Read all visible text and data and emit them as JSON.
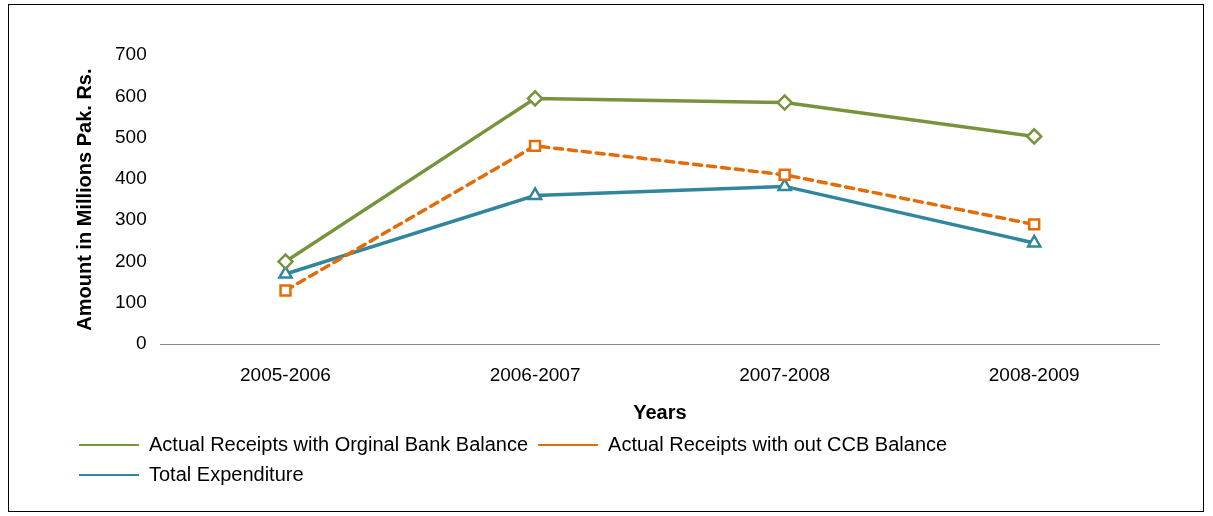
{
  "chart_data": {
    "type": "line",
    "xlabel": "Years",
    "ylabel": "Amount in Millions Pak. Rs.",
    "categories": [
      "2005-2006",
      "2006-2007",
      "2007-2008",
      "2008-2009"
    ],
    "series": [
      {
        "name": "Actual Receipts with Orginal Bank Balance",
        "color": "#77933c",
        "values": [
          200,
          595,
          585,
          503
        ],
        "marker": "diamond",
        "line_style": "solid"
      },
      {
        "name": "Actual Receipts with out CCB Balance",
        "color": "#e36c09",
        "values": [
          130,
          480,
          410,
          290
        ],
        "marker": "square",
        "line_style": "dashed"
      },
      {
        "name": "Total Expenditure",
        "color": "#31859c",
        "values": [
          170,
          360,
          382,
          245
        ],
        "marker": "triangle",
        "line_style": "solid"
      }
    ],
    "ylim": [
      0,
      700
    ],
    "yticks": [
      0,
      100,
      200,
      300,
      400,
      500,
      600,
      700
    ],
    "grid": false,
    "legend": "bottom"
  }
}
